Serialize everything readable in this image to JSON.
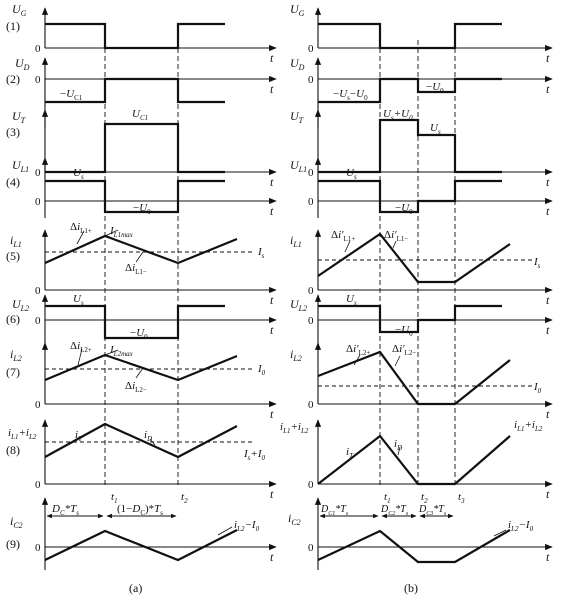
{
  "row_numbers": [
    "(1)",
    "(2)",
    "(3)",
    "(4)",
    "(5)",
    "(6)",
    "(7)",
    "(8)",
    "(9)"
  ],
  "panel_captions": {
    "a": "(a)",
    "b": "(b)"
  },
  "t_symbol": "t",
  "zero_symbol": "0",
  "panel_a": {
    "y_labels": [
      "U_G",
      "U_D",
      "U_T",
      "U_L1",
      "i_L1",
      "U_L2",
      "i_L2",
      "i_L1+i_L2",
      "i_C2"
    ],
    "time_markers": [
      "t_1",
      "t_2"
    ],
    "annotations": {
      "r2_neg": "−U_C1",
      "r3_high": "U_C1",
      "r4_pos": "U_s",
      "r4_neg": "−U_0",
      "r5_rise": "Δi_L1+",
      "r5_max": "I_L1max",
      "r5_fall": "Δi_L1−",
      "r5_avg": "I_s",
      "r6_pos": "U_s",
      "r6_neg": "−U_0",
      "r7_rise": "Δi_L2+",
      "r7_max": "I_L2max",
      "r7_fall": "Δi_L2−",
      "r7_avg": "I_0",
      "r8_rise": "i_T",
      "r8_fall": "i_D",
      "r8_avg": "I_s+I_0",
      "r9_seg1": "D_C*T_s",
      "r9_seg2": "(1−D_C)*T_s",
      "r9_trace": "i_L2−I_0"
    }
  },
  "panel_b": {
    "y_labels": [
      "U_G",
      "U_D",
      "U_T",
      "U_L1",
      "i_L1",
      "U_L2",
      "i_L2",
      "i_L1+i_L2",
      "i_C2"
    ],
    "time_markers": [
      "t_1",
      "t_2",
      "t_3"
    ],
    "annotations": {
      "r2_neg1": "−U_s−U_0",
      "r2_neg2": "−U_0",
      "r3_high": "U_s+U_0",
      "r3_mid": "U_s",
      "r4_pos": "U_s",
      "r4_neg": "−U_0",
      "r5_rise": "Δi′_L1+",
      "r5_fall": "Δi′_L1−",
      "r5_avg": "I_s",
      "r6_pos": "U_s",
      "r6_neg": "−U_0",
      "r7_rise": "Δi′_L2+",
      "r7_fall": "Δi′_L2−",
      "r7_avg": "I_0",
      "r8_rise": "i_T",
      "r8_fall": "i_D",
      "r8_side": "i_L1+i_L2",
      "r9_seg1": "D_C1*T_s",
      "r9_seg2": "D_C2*T_s",
      "r9_seg3": "D_C3*T_s",
      "r9_trace": "i_L2−I_0"
    }
  }
}
